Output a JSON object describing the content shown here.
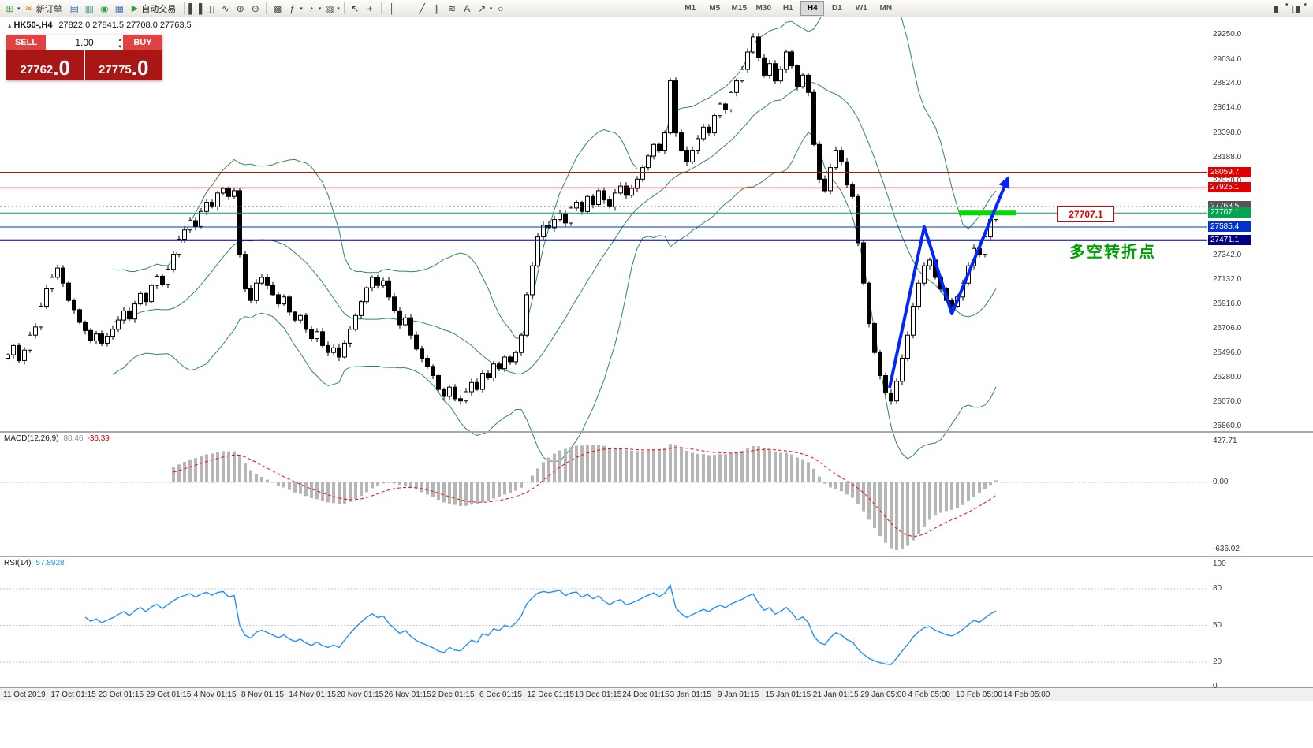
{
  "toolbar": {
    "new_order_label": "新订单",
    "autotrading_label": "自动交易",
    "timeframes": [
      "M1",
      "M5",
      "M15",
      "M30",
      "H1",
      "H4",
      "D1",
      "W1",
      "MN"
    ],
    "active_timeframe": "H4",
    "icons": {
      "caret": "▾",
      "new_chart": "⊞",
      "new_order": "✉",
      "market_watch": "▤",
      "data_window": "▥",
      "navigator": "◉",
      "terminal": "▦",
      "autotrading_play": "▶",
      "chart_bars": "▌▐",
      "chart_candles": "◫",
      "chart_line": "∿",
      "zoom_in": "⊕",
      "zoom_out": "⊖",
      "tile_windows": "▩",
      "indicators": "ƒ",
      "periods": "◔",
      "templates": "▨",
      "cursor": "↖",
      "crosshair": "+",
      "vline": "│",
      "hline": "─",
      "trendline": "╱",
      "channel": "∥",
      "fibonacci": "≋",
      "text_tool": "A",
      "arrow_tool": "↗",
      "shapes": "○",
      "win1": "◧",
      "win2": "◨",
      "spinner_up": "▴",
      "spinner_down": "▾",
      "symbol_marker": "▴"
    }
  },
  "quote_panel": {
    "sell_label": "SELL",
    "buy_label": "BUY",
    "volume": "1.00",
    "sell_price_main": "27762",
    "sell_price_frac": ".0",
    "buy_price_main": "27775",
    "buy_price_frac": ".0"
  },
  "chart": {
    "title": "HK50-,H4",
    "ohlc_text": "27822.0 27841.5 27708.0 27763.5",
    "price_tag_label": "27707.1",
    "annotation": "多空转折点",
    "colors": {
      "bollinger": "#2e8b57",
      "candle_up": "#ffffff",
      "candle_down": "#000000",
      "trend_arrow": "#0026ff",
      "highlight_green": "#00dd00",
      "macd_hist": "#b6b6b6",
      "macd_signal": "#ff0000",
      "rsi_line": "#1e90ff"
    },
    "y_ticks": [
      "29250.0",
      "29034.0",
      "28824.0",
      "28614.0",
      "28398.0",
      "28188.0",
      "27978.0",
      "27342.0",
      "27132.0",
      "26916.0",
      "26706.0",
      "26496.0",
      "26280.0",
      "26070.0",
      "25860.0"
    ],
    "level_tags": [
      {
        "text": "28059.7",
        "value": 28059.7,
        "color": "#e00000",
        "w": 1
      },
      {
        "text": "27925.1",
        "value": 27925.1,
        "color": "#e00000",
        "w": 1
      },
      {
        "text": "27763.5",
        "value": 27763.5,
        "color": "#888888",
        "w": 1,
        "dash": "2,3",
        "tag_bg": "#555555"
      },
      {
        "text": "27707.1",
        "value": 27707.1,
        "color": "#00a651",
        "w": 1
      },
      {
        "text": "27585.4",
        "value": 27585.4,
        "color": "#0033cc",
        "w": 1
      },
      {
        "text": "27471.1",
        "value": 27471.1,
        "color": "#000080",
        "w": 2
      }
    ],
    "x_labels": [
      "11 Oct 2019",
      "17 Oct 01:15",
      "23 Oct 01:15",
      "29 Oct 01:15",
      "4 Nov 01:15",
      "8 Nov 01:15",
      "14 Nov 01:15",
      "20 Nov 01:15",
      "26 Nov 01:15",
      "2 Dec 01:15",
      "6 Dec 01:15",
      "12 Dec 01:15",
      "18 Dec 01:15",
      "24 Dec 01:15",
      "3 Jan 01:15",
      "9 Jan 01:15",
      "15 Jan 01:15",
      "21 Jan 01:15",
      "29 Jan 05:00",
      "4 Feb 05:00",
      "10 Feb 05:00",
      "14 Feb 05:00"
    ]
  },
  "chart_data": {
    "type": "candlestick",
    "symbol": "HK50",
    "timeframe": "H4",
    "ylim": [
      25860,
      29250
    ],
    "first_open": 26450,
    "bollinger_period": 20,
    "bollinger_dev": 2,
    "closes": [
      26480,
      26560,
      26430,
      26520,
      26650,
      26720,
      26900,
      27050,
      27150,
      27230,
      27100,
      26950,
      26870,
      26760,
      26690,
      26600,
      26660,
      26580,
      26640,
      26700,
      26780,
      26860,
      26790,
      26920,
      27010,
      26940,
      27080,
      27160,
      27090,
      27220,
      27350,
      27480,
      27560,
      27640,
      27590,
      27720,
      27800,
      27760,
      27880,
      27920,
      27850,
      27900,
      27350,
      27050,
      26950,
      27100,
      27150,
      27080,
      27000,
      26920,
      26980,
      26850,
      26780,
      26820,
      26700,
      26620,
      26680,
      26560,
      26500,
      26540,
      26460,
      26580,
      26700,
      26820,
      26940,
      27060,
      27150,
      27080,
      27120,
      26980,
      26860,
      26740,
      26800,
      26650,
      26530,
      26450,
      26380,
      26300,
      26180,
      26120,
      26200,
      26100,
      26080,
      26160,
      26240,
      26180,
      26320,
      26280,
      26400,
      26360,
      26460,
      26420,
      26500,
      26650,
      27000,
      27250,
      27500,
      27600,
      27580,
      27650,
      27700,
      27620,
      27750,
      27800,
      27720,
      27850,
      27780,
      27900,
      27820,
      27760,
      27880,
      27940,
      27860,
      27920,
      28000,
      28100,
      28200,
      28300,
      28250,
      28400,
      28850,
      28400,
      28250,
      28150,
      28250,
      28350,
      28450,
      28400,
      28550,
      28650,
      28600,
      28750,
      28850,
      28950,
      29100,
      29230,
      29050,
      28900,
      29000,
      28850,
      28950,
      29100,
      28980,
      28800,
      28900,
      28750,
      28300,
      28000,
      27900,
      28100,
      28250,
      28150,
      27950,
      27850,
      27450,
      27100,
      26750,
      26500,
      26300,
      26150,
      26080,
      26250,
      26450,
      26650,
      26900,
      27100,
      27250,
      27300,
      27150,
      27050,
      26950,
      26900,
      26980,
      27100,
      27250,
      27400,
      27350,
      27500,
      27650,
      27763.5
    ]
  },
  "macd": {
    "label": "MACD(12,26,9)",
    "value_main": "80.46",
    "value_signal": "-36.39",
    "axis_ticks": [
      "427.71",
      "0.00",
      "-636.02"
    ]
  },
  "rsi": {
    "label": "RSI(14)",
    "value": "57.8928",
    "axis_ticks": [
      "100",
      "80",
      "50",
      "20",
      "0"
    ],
    "axis_values": [
      100,
      80,
      50,
      20,
      0
    ],
    "levels": [
      80,
      50,
      20
    ]
  }
}
